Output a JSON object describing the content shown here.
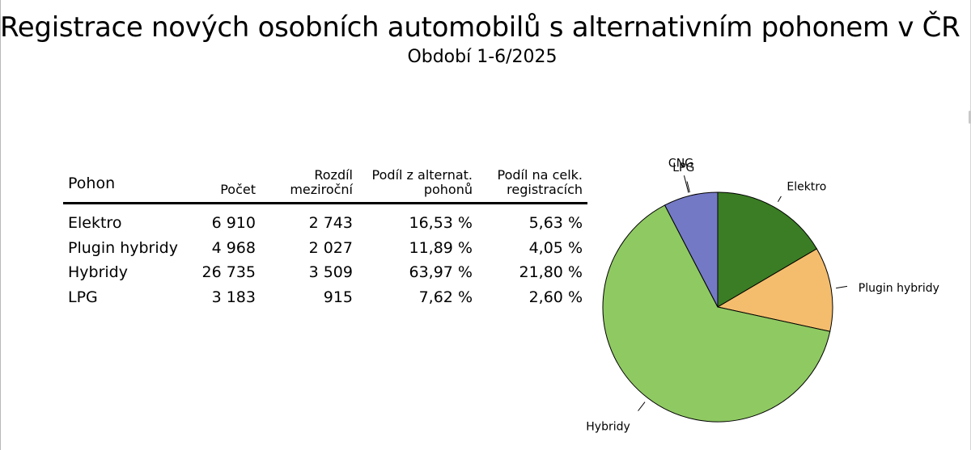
{
  "title": "Registrace nových osobních automobilů s alternativním pohonem v ČR",
  "subtitle": "Období 1-6/2025",
  "table": {
    "headers": [
      "Pohon",
      "Počet",
      "Rozdíl\nmeziroční",
      "Podíl z alternat.\npohonů",
      "Podíl na celk.\nregistracích"
    ],
    "rows": [
      [
        "Elektro",
        "6 910",
        "2 743",
        "16,53 %",
        "5,63 %"
      ],
      [
        "Plugin hybridy",
        "4 968",
        "2 027",
        "11,89 %",
        "4,05 %"
      ],
      [
        "Hybridy",
        "26 735",
        "3 509",
        "63,97 %",
        "21,80 %"
      ],
      [
        "LPG",
        "3 183",
        "915",
        "7,62 %",
        "2,60 %"
      ]
    ]
  },
  "chart_data": {
    "type": "pie",
    "slices": [
      {
        "label": "Elektro",
        "value": 16.53,
        "color": "#3a7d24"
      },
      {
        "label": "Plugin hybridy",
        "value": 11.89,
        "color": "#f4bd6d"
      },
      {
        "label": "Hybridy",
        "value": 63.97,
        "color": "#8fc962"
      },
      {
        "label": "LPG",
        "value": 7.62,
        "color": "#7479c6"
      },
      {
        "label": "CNG",
        "value": 0,
        "color": "#000000"
      }
    ]
  }
}
